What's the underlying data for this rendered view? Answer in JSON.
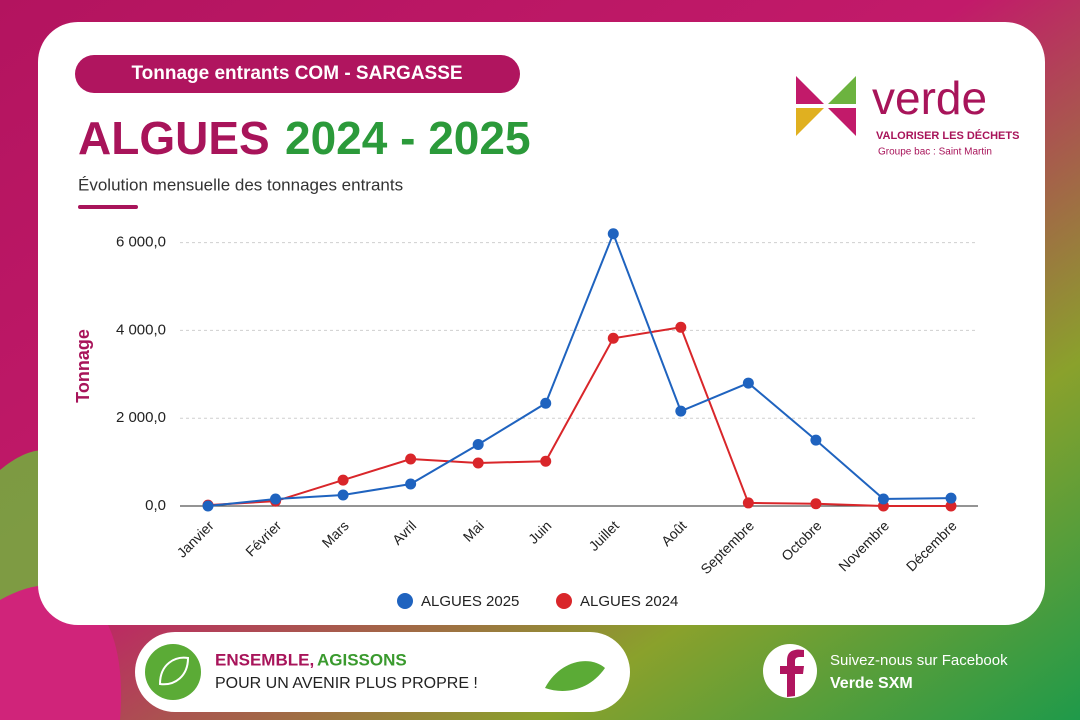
{
  "header": {
    "badge": "Tonnage entrants COM - SARGASSE",
    "title_main": "ALGUES",
    "title_years": "2024 - 2025",
    "subtitle": "Évolution mensuelle des tonnages entrants"
  },
  "logo": {
    "name": "verde",
    "tagline": "VALORISER LES DÉCHETS",
    "group": "Groupe bac : Saint Martin"
  },
  "chart_data": {
    "type": "line",
    "y_label": "Tonnage",
    "categories": [
      "Janvier",
      "Février",
      "Mars",
      "Avril",
      "Mai",
      "Juin",
      "Juillet",
      "Août",
      "Septembre",
      "Octobre",
      "Novembre",
      "Décembre"
    ],
    "series": [
      {
        "name": "ALGUES 2025",
        "color": "#1f63bf",
        "values": [
          0,
          160,
          250,
          500,
          1400,
          2340,
          6200,
          2160,
          2800,
          1500,
          160,
          180
        ]
      },
      {
        "name": "ALGUES 2024",
        "color": "#d9262a",
        "values": [
          20,
          110,
          590,
          1070,
          980,
          1020,
          3820,
          4070,
          70,
          50,
          0,
          0
        ]
      }
    ],
    "ylim": [
      0,
      6400
    ],
    "yticks": [
      {
        "value": 0,
        "label": "0,0"
      },
      {
        "value": 2000,
        "label": "2 000,0"
      },
      {
        "value": 4000,
        "label": "4 000,0"
      },
      {
        "value": 6000,
        "label": "6 000,0"
      }
    ],
    "grid": true,
    "legend": "bottom"
  },
  "footer": {
    "slogan_1": "ENSEMBLE,",
    "slogan_2": "AGISSONS",
    "slogan_3": "POUR UN AVENIR PLUS PROPRE !",
    "follow": "Suivez-nous sur Facebook",
    "account": "Verde SXM"
  }
}
